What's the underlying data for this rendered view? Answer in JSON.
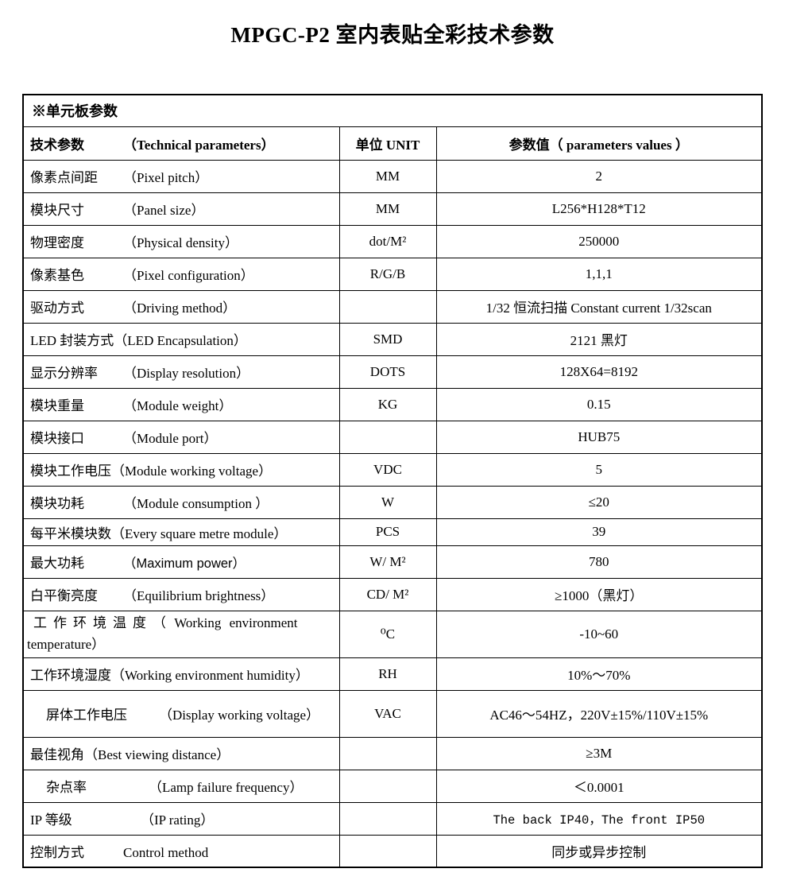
{
  "page": {
    "title": "MPGC-P2 室内表贴全彩技术参数"
  },
  "colors": {
    "background": "#ffffff",
    "text": "#000000",
    "border": "#000000"
  },
  "table": {
    "section_header": "※单元板参数",
    "header": {
      "param_zh": "技术参数",
      "param_en": "（Technical parameters）",
      "unit": "单位 UNIT",
      "value": "参数值（ parameters values ）"
    },
    "rows": [
      {
        "param_zh": "像素点间距",
        "param_en": "（Pixel pitch）",
        "unit": "MM",
        "value": "2"
      },
      {
        "param_zh": "模块尺寸",
        "param_en": "（Panel size）",
        "unit": "MM",
        "value": "L256*H128*T12"
      },
      {
        "param_zh": "物理密度",
        "param_en": "（Physical density）",
        "unit": "dot/M²",
        "value": "250000"
      },
      {
        "param_zh": "像素基色",
        "param_en": "（Pixel configuration）",
        "unit": "R/G/B",
        "value": "1,1,1"
      },
      {
        "param_zh": "驱动方式",
        "param_en": "（Driving method）",
        "unit": "",
        "value": "1/32 恒流扫描 Constant current 1/32scan"
      },
      {
        "param_zh": "LED 封装方式",
        "param_en": "（LED Encapsulation）",
        "unit": "SMD",
        "value": "2121 黑灯"
      },
      {
        "param_zh": "显示分辨率",
        "param_en": "（Display resolution）",
        "unit": "DOTS",
        "value": "128X64=8192"
      },
      {
        "param_zh": "模块重量",
        "param_en": "（Module weight）",
        "unit": "KG",
        "value": "0.15"
      },
      {
        "param_zh": "模块接口",
        "param_en": "（Module port）",
        "unit": "",
        "value": "HUB75"
      },
      {
        "param_zh": "模块工作电压",
        "param_en": "（Module working voltage）",
        "unit": "VDC",
        "value": "5"
      },
      {
        "param_zh": "模块功耗",
        "param_en": "（Module consumption ）",
        "unit": "W",
        "value": "≤20"
      },
      {
        "param_zh": "每平米模块数",
        "param_en": "（Every square metre module）",
        "unit": "PCS",
        "value": "39"
      },
      {
        "param_zh": "最大功耗",
        "param_en": "（Maximum power）",
        "unit": "W/ M²",
        "value": "780"
      },
      {
        "param_zh": "白平衡亮度",
        "param_en": "（Equilibrium brightness）",
        "unit": "CD/ M²",
        "value": "≥1000（黑灯）"
      },
      {
        "param_zh": "工作环境温度",
        "param_en": "（ Working environment\ntemperature）",
        "unit": "⁰C",
        "value": "-10~60"
      },
      {
        "param_zh": "工作环境湿度",
        "param_en": "（Working environment humidity）",
        "unit": "RH",
        "value": "10%～70%"
      },
      {
        "param_zh": "屏体工作电压",
        "param_en": "（Display working voltage）",
        "unit": "VAC",
        "value": "AC46～54HZ，220V±15%/110V±15%"
      },
      {
        "param_zh": "最佳视角",
        "param_en": "（Best viewing distance）",
        "unit": "",
        "value": "≥3M"
      },
      {
        "param_zh": "杂点率",
        "param_en": "（Lamp failure frequency）",
        "unit": "",
        "value": "＜0.0001"
      },
      {
        "param_zh": "IP 等级",
        "param_en": "（IP rating）",
        "unit": "",
        "value": "The back IP40，The front IP50"
      },
      {
        "param_zh": "控制方式",
        "param_en": "Control method",
        "unit": "",
        "value": "同步或异步控制"
      }
    ]
  }
}
